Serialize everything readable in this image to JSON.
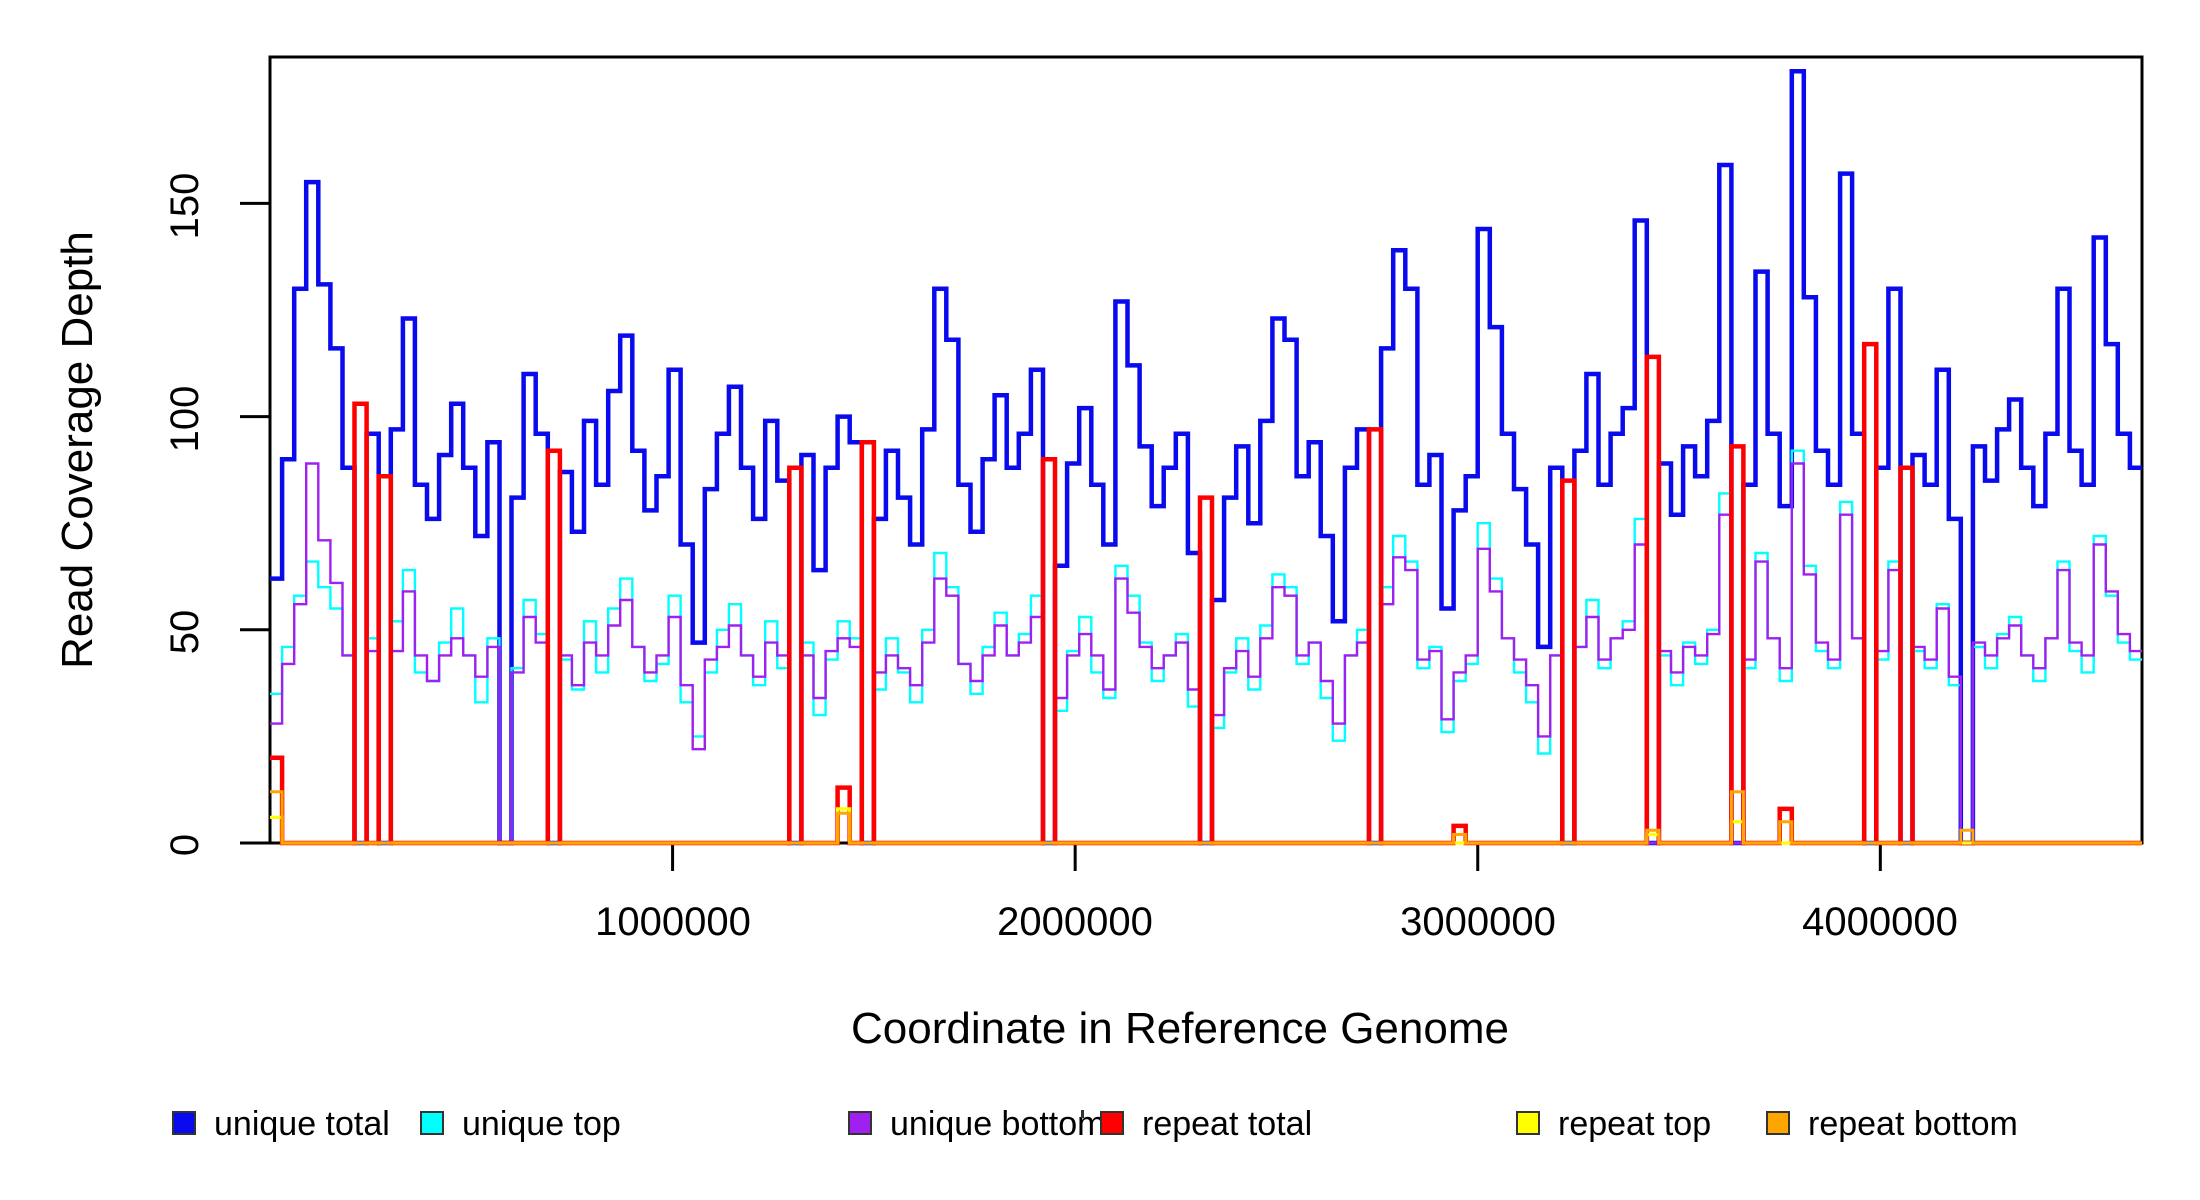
{
  "figure": {
    "y_axis_title": "Read Coverage Depth",
    "x_axis_title": "Coordinate in Reference Genome",
    "y_tick_labels": [
      "0",
      "50",
      "100",
      "150"
    ],
    "x_tick_labels": [
      "1000000",
      "2000000",
      "3000000",
      "4000000"
    ]
  },
  "chart_data": {
    "type": "line",
    "style": "step",
    "title": "",
    "xlabel": "Coordinate in Reference Genome",
    "ylabel": "Read Coverage Depth",
    "x_range": [
      0,
      4650000
    ],
    "y_range": [
      0,
      185
    ],
    "x_ticks": [
      1000000,
      2000000,
      3000000,
      4000000
    ],
    "y_ticks": [
      0,
      50,
      100,
      150
    ],
    "bin_size": 30000,
    "grid": false,
    "legend_position": "bottom",
    "series": [
      {
        "name": "unique total",
        "color": "#0a0aee",
        "line_width": 4.5,
        "values": [
          62,
          90,
          130,
          155,
          131,
          116,
          88,
          0,
          96,
          0,
          97,
          123,
          84,
          76,
          91,
          103,
          88,
          72,
          94,
          0,
          81,
          110,
          96,
          0,
          87,
          73,
          99,
          84,
          106,
          119,
          92,
          78,
          86,
          111,
          70,
          47,
          83,
          96,
          107,
          88,
          76,
          99,
          85,
          0,
          91,
          64,
          88,
          100,
          94,
          0,
          76,
          92,
          81,
          70,
          97,
          130,
          118,
          84,
          73,
          90,
          105,
          88,
          96,
          111,
          0,
          65,
          89,
          102,
          84,
          70,
          127,
          112,
          93,
          79,
          88,
          96,
          68,
          0,
          57,
          81,
          93,
          75,
          99,
          123,
          118,
          86,
          94,
          72,
          52,
          88,
          97,
          0,
          116,
          139,
          130,
          84,
          91,
          55,
          78,
          86,
          144,
          121,
          96,
          83,
          70,
          46,
          88,
          0,
          92,
          110,
          84,
          96,
          102,
          146,
          0,
          89,
          77,
          93,
          86,
          99,
          159,
          0,
          84,
          134,
          96,
          79,
          181,
          128,
          92,
          84,
          157,
          96,
          0,
          88,
          130,
          0,
          91,
          84,
          111,
          76,
          0,
          93,
          85,
          97,
          104,
          88,
          79,
          96,
          130,
          92,
          84,
          142,
          117,
          96,
          88
        ]
      },
      {
        "name": "unique top",
        "color": "#00ffff",
        "line_width": 2.4,
        "values": [
          35,
          46,
          58,
          66,
          60,
          55,
          44,
          0,
          48,
          0,
          52,
          64,
          40,
          38,
          47,
          55,
          44,
          33,
          48,
          0,
          41,
          57,
          49,
          0,
          43,
          36,
          52,
          40,
          55,
          62,
          46,
          38,
          42,
          58,
          33,
          25,
          40,
          50,
          56,
          44,
          37,
          52,
          41,
          0,
          47,
          30,
          43,
          52,
          48,
          0,
          36,
          48,
          40,
          33,
          50,
          68,
          60,
          42,
          35,
          46,
          54,
          44,
          49,
          58,
          0,
          31,
          45,
          53,
          40,
          34,
          65,
          58,
          47,
          38,
          44,
          49,
          32,
          0,
          27,
          40,
          48,
          36,
          51,
          63,
          60,
          42,
          47,
          34,
          24,
          44,
          50,
          0,
          60,
          72,
          66,
          41,
          46,
          26,
          38,
          42,
          75,
          62,
          48,
          40,
          33,
          21,
          44,
          0,
          46,
          57,
          41,
          48,
          52,
          76,
          0,
          44,
          37,
          47,
          42,
          50,
          82,
          0,
          41,
          68,
          48,
          38,
          92,
          65,
          45,
          41,
          80,
          48,
          0,
          43,
          66,
          0,
          45,
          41,
          56,
          37,
          0,
          46,
          41,
          49,
          53,
          44,
          38,
          48,
          66,
          45,
          40,
          72,
          58,
          47,
          43
        ]
      },
      {
        "name": "unique bottom",
        "color": "#a020f0",
        "line_width": 2.4,
        "values": [
          28,
          42,
          56,
          89,
          71,
          61,
          44,
          0,
          45,
          0,
          45,
          59,
          44,
          38,
          44,
          48,
          44,
          39,
          46,
          0,
          40,
          53,
          47,
          0,
          44,
          37,
          47,
          44,
          51,
          57,
          46,
          40,
          44,
          53,
          37,
          22,
          43,
          46,
          51,
          44,
          39,
          47,
          44,
          0,
          44,
          34,
          45,
          48,
          46,
          0,
          40,
          44,
          41,
          37,
          47,
          62,
          58,
          42,
          38,
          44,
          51,
          44,
          47,
          53,
          0,
          34,
          44,
          49,
          44,
          36,
          62,
          54,
          46,
          41,
          44,
          47,
          36,
          0,
          30,
          41,
          45,
          39,
          48,
          60,
          58,
          44,
          47,
          38,
          28,
          44,
          47,
          0,
          56,
          67,
          64,
          43,
          45,
          29,
          40,
          44,
          69,
          59,
          48,
          43,
          37,
          25,
          44,
          0,
          46,
          53,
          43,
          48,
          50,
          70,
          0,
          45,
          40,
          46,
          44,
          49,
          77,
          0,
          43,
          66,
          48,
          41,
          89,
          63,
          47,
          43,
          77,
          48,
          0,
          45,
          64,
          0,
          46,
          43,
          55,
          39,
          0,
          47,
          44,
          48,
          51,
          44,
          41,
          48,
          64,
          47,
          44,
          70,
          59,
          49,
          45
        ]
      },
      {
        "name": "repeat total",
        "color": "#ff0000",
        "line_width": 4.5,
        "baseline": 0,
        "n_bins": 155,
        "spikes": [
          [
            0,
            20
          ],
          [
            7,
            103
          ],
          [
            9,
            86
          ],
          [
            23,
            92
          ],
          [
            43,
            88
          ],
          [
            47,
            13
          ],
          [
            49,
            94
          ],
          [
            64,
            90
          ],
          [
            77,
            81
          ],
          [
            91,
            97
          ],
          [
            98,
            4
          ],
          [
            107,
            85
          ],
          [
            114,
            114
          ],
          [
            121,
            93
          ],
          [
            125,
            8
          ],
          [
            132,
            117
          ],
          [
            135,
            88
          ]
        ]
      },
      {
        "name": "repeat top",
        "color": "#ffff00",
        "line_width": 3.2,
        "baseline": 0,
        "n_bins": 155,
        "spikes": [
          [
            0,
            6
          ],
          [
            47,
            8
          ],
          [
            114,
            2
          ],
          [
            121,
            5
          ]
        ]
      },
      {
        "name": "repeat bottom",
        "color": "#ffa500",
        "line_width": 3.0,
        "baseline": 0,
        "n_bins": 155,
        "spikes": [
          [
            0,
            12
          ],
          [
            47,
            7
          ],
          [
            98,
            2
          ],
          [
            114,
            3
          ],
          [
            121,
            12
          ],
          [
            125,
            5
          ],
          [
            140,
            3
          ]
        ]
      }
    ]
  }
}
